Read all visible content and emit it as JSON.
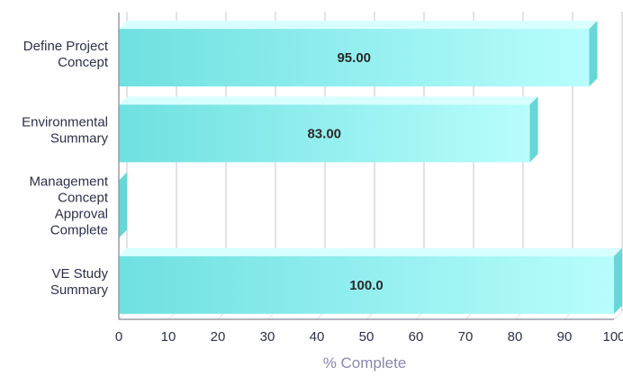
{
  "chart_data": {
    "type": "bar",
    "orientation": "horizontal",
    "categories": [
      [
        "Define Project",
        "Concept"
      ],
      [
        "Environmental",
        "Summary"
      ],
      [
        "Management",
        "Concept",
        "Approval",
        "Complete"
      ],
      [
        "VE Study",
        "Summary"
      ]
    ],
    "values": [
      95.0,
      83.0,
      0.0,
      100.0
    ],
    "value_labels": [
      "95.00",
      "83.00",
      "",
      "100.0"
    ],
    "xlabel": "% Complete",
    "ylabel": "",
    "xlim": [
      0,
      100
    ],
    "xticks": [
      "0",
      "10",
      "20",
      "30",
      "40",
      "50",
      "60",
      "70",
      "80",
      "90",
      "100"
    ],
    "grid": "vertical",
    "colors": {
      "bar_light": "#b8fdfd",
      "bar_dark": "#6fe0e0",
      "bar_top": "#d8ffff",
      "bar_side": "#66d6d6",
      "grid": "#e2e2ea",
      "axis": "#9a9aaa"
    }
  }
}
